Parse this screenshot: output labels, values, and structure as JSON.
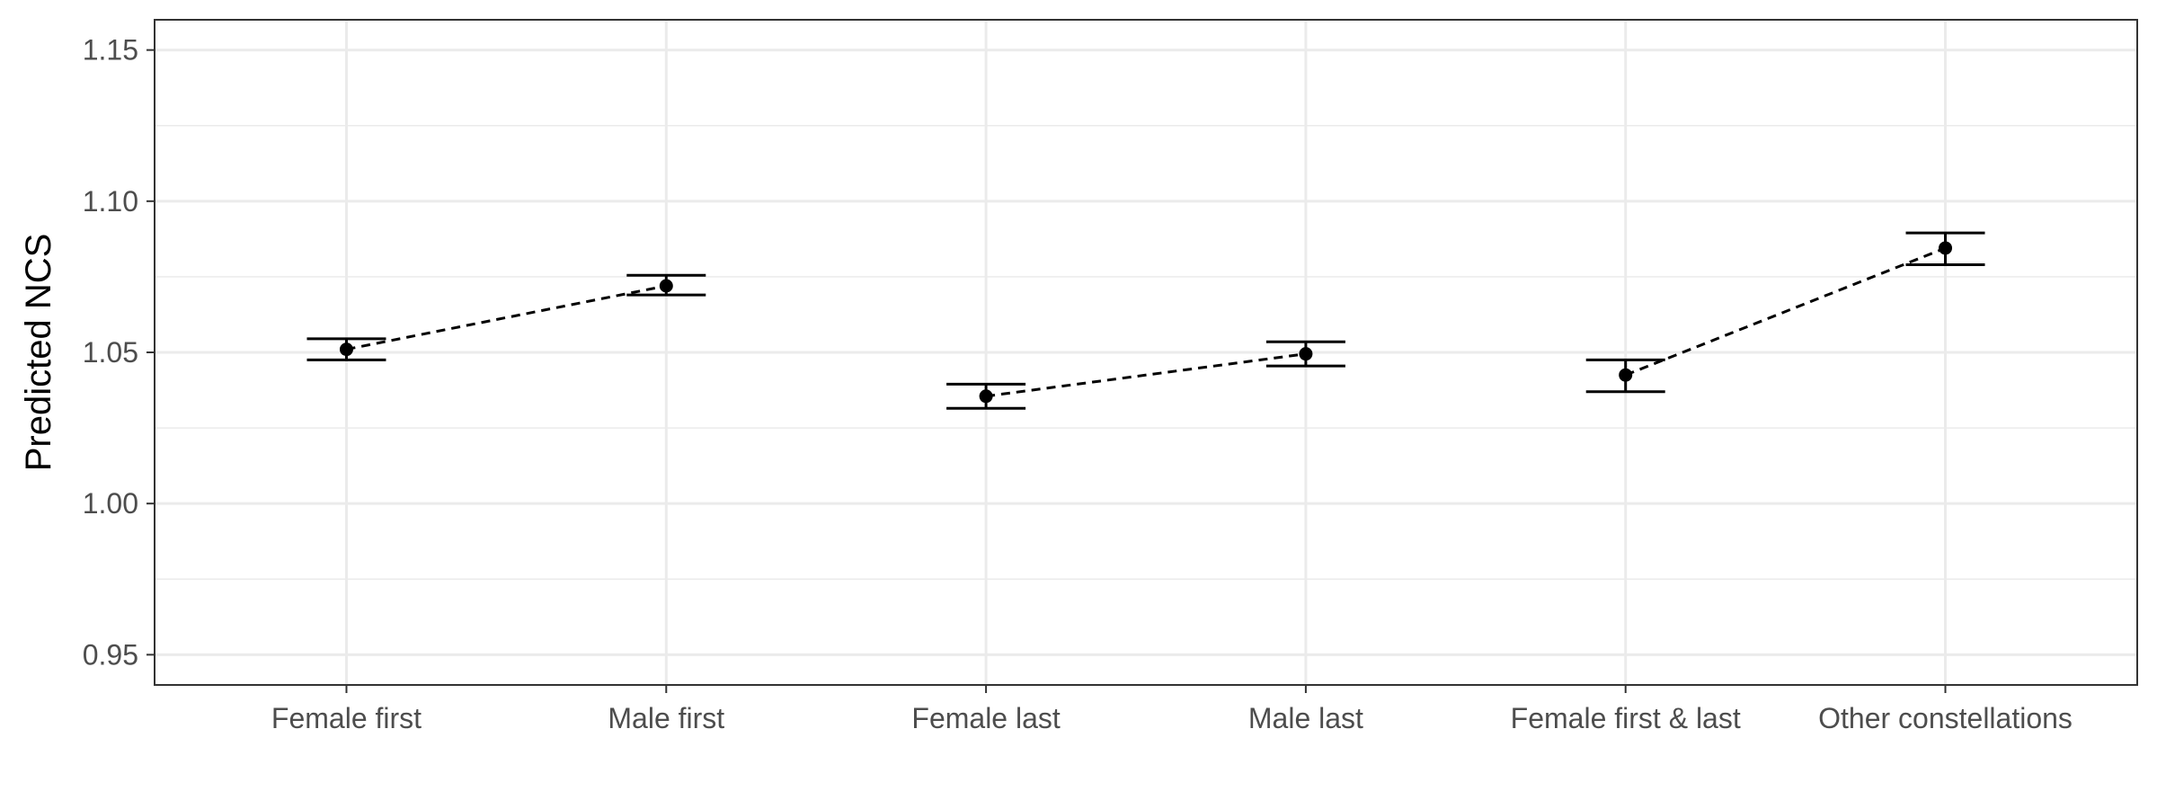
{
  "chart_data": {
    "type": "scatter",
    "title": "",
    "xlabel": "",
    "ylabel": "Predicted NCS",
    "categories": [
      "Female first",
      "Male first",
      "Female last",
      "Male last",
      "Female first & last",
      "Other constellations"
    ],
    "series": [
      {
        "values": [
          1.051,
          1.072,
          1.0355,
          1.0495,
          1.0425,
          1.0845
        ],
        "lower": [
          1.0475,
          1.069,
          1.0315,
          1.0455,
          1.037,
          1.079
        ],
        "upper": [
          1.0545,
          1.0755,
          1.0395,
          1.0535,
          1.0475,
          1.0895
        ]
      }
    ],
    "connected_pairs": [
      [
        0,
        1
      ],
      [
        2,
        3
      ],
      [
        4,
        5
      ]
    ],
    "connector_style": "dashed",
    "ylim": [
      0.94,
      1.16
    ],
    "yticks": [
      "0.95",
      "1.00",
      "1.05",
      "1.10",
      "1.15"
    ],
    "ytick_values": [
      0.95,
      1.0,
      1.05,
      1.1,
      1.15
    ],
    "grid": true,
    "legend": "none",
    "colors": {
      "points": "#000000",
      "grid": "#ebebeb",
      "panel_border": "#333333",
      "tick_text": "#4d4d4d"
    }
  }
}
